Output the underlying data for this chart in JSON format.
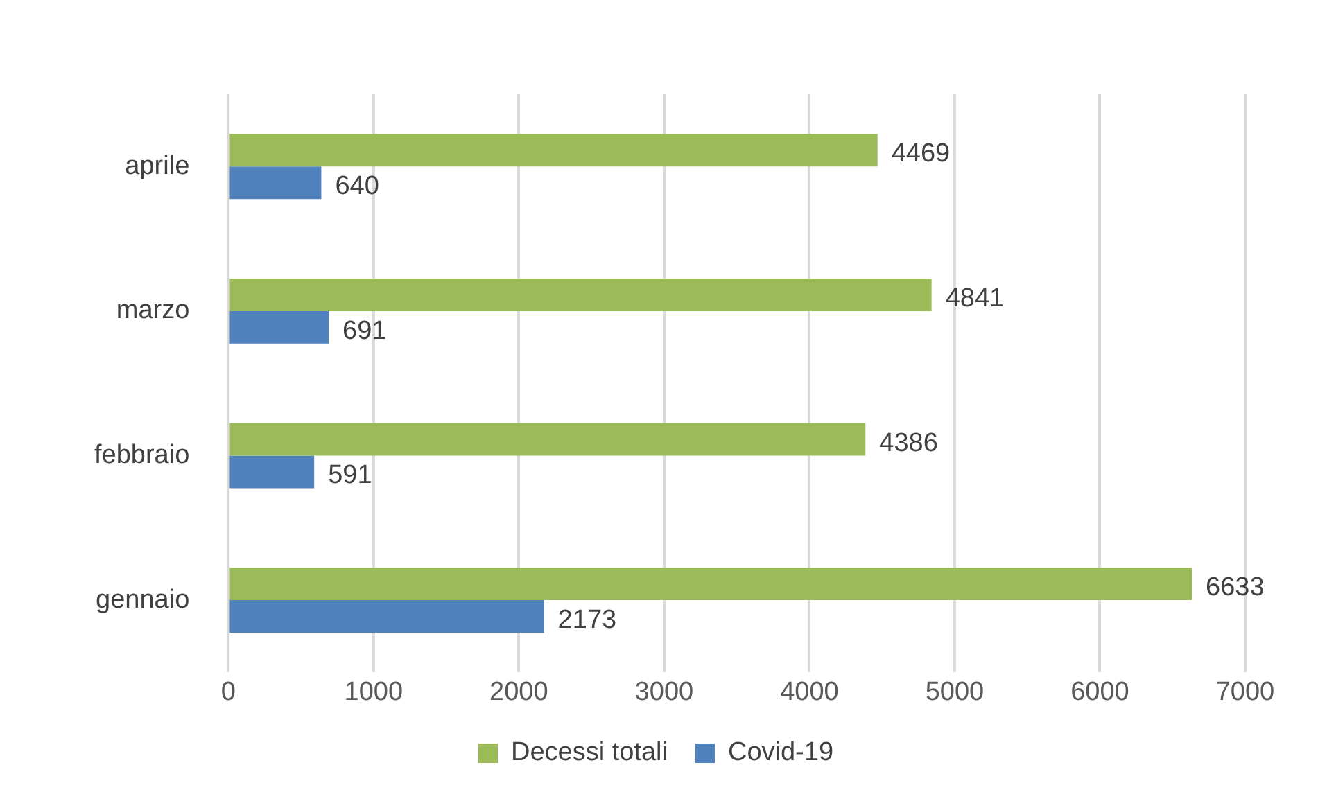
{
  "chart_data": {
    "type": "bar",
    "orientation": "horizontal",
    "categories": [
      "aprile",
      "marzo",
      "febbraio",
      "gennaio"
    ],
    "series": [
      {
        "name": "Decessi totali",
        "color": "#9bbb59",
        "values": [
          4469,
          4841,
          4386,
          6633
        ]
      },
      {
        "name": "Covid-19",
        "color": "#4f81bd",
        "values": [
          640,
          691,
          591,
          2173
        ]
      }
    ],
    "xlim": [
      0,
      7000
    ],
    "xticks": [
      0,
      1000,
      2000,
      3000,
      4000,
      5000,
      6000,
      7000
    ],
    "grid": "x",
    "legend": "bottom",
    "data_labels": true
  }
}
